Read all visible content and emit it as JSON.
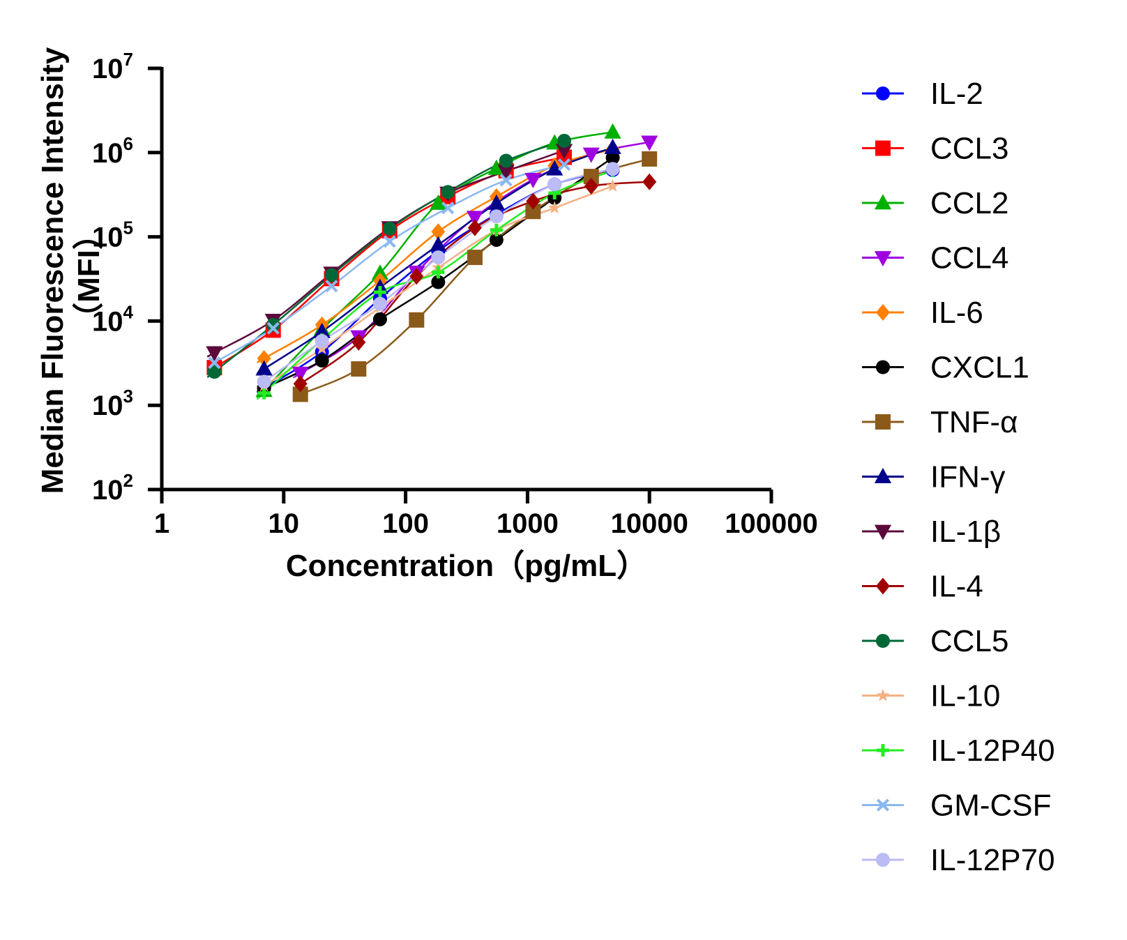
{
  "chart_data": {
    "type": "scatter",
    "ylabel": "Median Fluorescence Intensity",
    "ylabel_unit": "（MFI）",
    "xlabel": "Concentration（pg/mL）",
    "x_scale": "log",
    "y_scale": "log",
    "xlim": [
      1,
      100000
    ],
    "ylim": [
      100,
      10000000
    ],
    "x_ticks": [
      1,
      10,
      100,
      1000,
      10000,
      100000
    ],
    "x_tick_labels": [
      "1",
      "10",
      "100",
      "1000",
      "10000",
      "100000"
    ],
    "y_ticks": [
      {
        "value": 100,
        "base": "10",
        "exp": "2"
      },
      {
        "value": 1000,
        "base": "10",
        "exp": "3"
      },
      {
        "value": 10000,
        "base": "10",
        "exp": "4"
      },
      {
        "value": 100000,
        "base": "10",
        "exp": "5"
      },
      {
        "value": 1000000,
        "base": "10",
        "exp": "6"
      },
      {
        "value": 10000000,
        "base": "10",
        "exp": "7"
      }
    ],
    "grid": false,
    "legend_position": "right",
    "series": [
      {
        "name": "IL-2",
        "color": "#0000FF",
        "marker": "circle",
        "x": [
          6.9,
          20.6,
          61.7,
          185,
          556,
          1667,
          5000
        ],
        "y": [
          1600,
          4300,
          18500,
          68000,
          185000,
          420000,
          620000
        ]
      },
      {
        "name": "CCL3",
        "color": "#FF0000",
        "marker": "square",
        "x": [
          2.7,
          8.2,
          24.7,
          74,
          222,
          667,
          2000
        ],
        "y": [
          2800,
          7800,
          32000,
          118000,
          300000,
          610000,
          880000
        ]
      },
      {
        "name": "CCL2",
        "color": "#00B000",
        "marker": "triangle-up",
        "x": [
          6.9,
          20.6,
          61.7,
          185,
          556,
          1667,
          5000
        ],
        "y": [
          1500,
          8000,
          37000,
          250000,
          650000,
          1300000,
          1750000
        ]
      },
      {
        "name": "CCL4",
        "color": "#A000E0",
        "marker": "triangle-down",
        "x": [
          13.7,
          41.2,
          123,
          370,
          1111,
          3333,
          10000
        ],
        "y": [
          2400,
          6500,
          38000,
          170000,
          480000,
          960000,
          1330000
        ]
      },
      {
        "name": "IL-6",
        "color": "#FF8000",
        "marker": "diamond",
        "x": [
          6.9,
          20.6,
          61.7,
          185,
          556,
          1667,
          5000
        ],
        "y": [
          3600,
          9000,
          30000,
          115000,
          300000,
          700000,
          1100000
        ]
      },
      {
        "name": "CXCL1",
        "color": "#000000",
        "marker": "circle",
        "x": [
          6.9,
          20.6,
          61.7,
          185,
          556,
          1667,
          5000
        ],
        "y": [
          1600,
          3400,
          10500,
          29000,
          92000,
          290000,
          870000
        ]
      },
      {
        "name": "TNF-α",
        "color": "#8B5A1A",
        "marker": "square",
        "x": [
          13.7,
          41.2,
          123,
          370,
          1111,
          3333,
          10000
        ],
        "y": [
          1350,
          2700,
          10300,
          57000,
          200000,
          520000,
          840000
        ]
      },
      {
        "name": "IFN-γ",
        "color": "#00008B",
        "marker": "triangle-up",
        "x": [
          6.9,
          20.6,
          61.7,
          185,
          556,
          1667,
          5000
        ],
        "y": [
          2700,
          7500,
          25000,
          80000,
          250000,
          640000,
          1150000
        ]
      },
      {
        "name": "IL-1β",
        "color": "#5C0A3C",
        "marker": "triangle-down",
        "x": [
          2.7,
          8.2,
          24.7,
          74,
          222,
          667,
          2000
        ],
        "y": [
          4200,
          10200,
          37000,
          128000,
          330000,
          600000,
          1060000
        ]
      },
      {
        "name": "IL-4",
        "color": "#A00000",
        "marker": "diamond",
        "x": [
          13.7,
          41.2,
          123,
          370,
          1111,
          3333,
          10000
        ],
        "y": [
          1800,
          5600,
          34000,
          128000,
          265000,
          400000,
          450000
        ]
      },
      {
        "name": "CCL5",
        "color": "#006837",
        "marker": "circle",
        "x": [
          2.7,
          8.2,
          24.7,
          74,
          222,
          667,
          2000
        ],
        "y": [
          2500,
          9000,
          35000,
          125000,
          340000,
          800000,
          1380000
        ]
      },
      {
        "name": "IL-10",
        "color": "#F4B183",
        "marker": "star",
        "x": [
          6.9,
          20.6,
          61.7,
          185,
          556,
          1667,
          5000
        ],
        "y": [
          1700,
          4700,
          14500,
          43000,
          120000,
          220000,
          400000
        ]
      },
      {
        "name": "IL-12P40",
        "color": "#22EE22",
        "marker": "plus",
        "x": [
          6.9,
          20.6,
          61.7,
          185,
          556,
          1667,
          5000
        ],
        "y": [
          1400,
          6000,
          22000,
          38000,
          120000,
          330000,
          610000
        ]
      },
      {
        "name": "GM-CSF",
        "color": "#8AB8F0",
        "marker": "x",
        "x": [
          2.7,
          8.2,
          24.7,
          74,
          222,
          667,
          2000
        ],
        "y": [
          3200,
          8200,
          26000,
          88000,
          220000,
          470000,
          720000
        ]
      },
      {
        "name": "IL-12P70",
        "color": "#BBBBF5",
        "marker": "circle",
        "x": [
          6.9,
          20.6,
          61.7,
          185,
          556,
          1667,
          5000
        ],
        "y": [
          1900,
          5800,
          16000,
          57000,
          175000,
          420000,
          640000
        ]
      }
    ]
  }
}
